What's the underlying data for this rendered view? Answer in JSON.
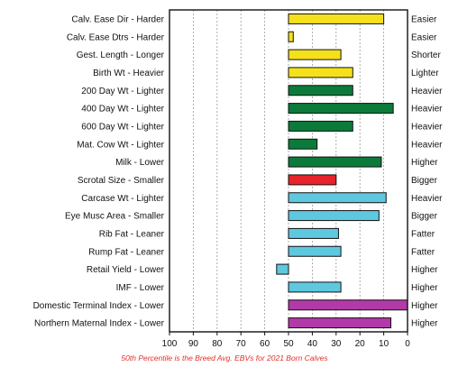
{
  "chart_data": {
    "type": "bar",
    "orientation": "horizontal",
    "categories": [
      "Calv. Ease Dir - Harder",
      "Calv. Ease Dtrs - Harder",
      "Gest. Length - Longer",
      "Birth Wt - Heavier",
      "200 Day Wt - Lighter",
      "400 Day Wt - Lighter",
      "600 Day Wt - Lighter",
      "Mat. Cow Wt - Lighter",
      "Milk - Lower",
      "Scrotal Size - Smaller",
      "Carcase Wt - Lighter",
      "Eye Musc Area - Smaller",
      "Rib Fat - Leaner",
      "Rump Fat - Leaner",
      "Retail Yield - Lower",
      "IMF - Lower",
      "Domestic Terminal Index - Lower",
      "Northern Maternal Index - Lower"
    ],
    "right_labels": [
      "Easier",
      "Easier",
      "Shorter",
      "Lighter",
      "Heavier",
      "Heavier",
      "Heavier",
      "Heavier",
      "Higher",
      "Bigger",
      "Heavier",
      "Bigger",
      "Fatter",
      "Fatter",
      "Higher",
      "Higher",
      "Higher",
      "Higher"
    ],
    "values": [
      10,
      48,
      28,
      23,
      23,
      6,
      23,
      38,
      11,
      30,
      9,
      12,
      29,
      28,
      55,
      28,
      0,
      7
    ],
    "baseline": 50,
    "bar_colors": [
      "#f5e11b",
      "#f5e11b",
      "#f5e11b",
      "#f5e11b",
      "#0c7a3a",
      "#0c7a3a",
      "#0c7a3a",
      "#0c7a3a",
      "#0c7a3a",
      "#e8232a",
      "#5ec8df",
      "#5ec8df",
      "#5ec8df",
      "#5ec8df",
      "#5ec8df",
      "#5ec8df",
      "#b23aa8",
      "#b23aa8"
    ],
    "xlim": [
      100,
      0
    ],
    "x_reversed": true,
    "x_ticks": [
      100,
      90,
      80,
      70,
      60,
      50,
      40,
      30,
      20,
      10,
      0
    ],
    "grid": "vertical dashed",
    "title": "",
    "xlabel": "",
    "ylabel": "",
    "footnote": "50th Percentile is the Breed Avg. EBVs for 2021 Born Calves",
    "colors": {
      "footnote": "#e0302a",
      "axis": "#111111",
      "grid": "#9a9a9a"
    }
  }
}
